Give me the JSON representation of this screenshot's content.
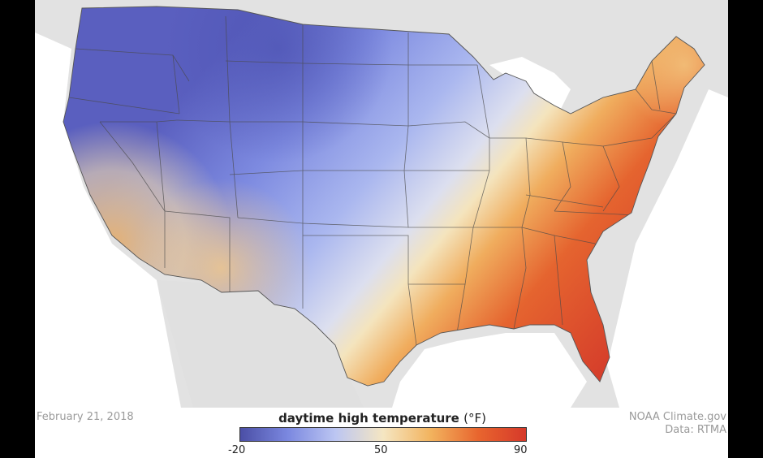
{
  "legend": {
    "title": "daytime high temperature",
    "unit": "(°F)",
    "min": -20,
    "mid": 50,
    "max": 90,
    "colors": [
      "#4b4fa6",
      "#7b88e0",
      "#bcc6f2",
      "#f5e6c2",
      "#f2b35e",
      "#e8652e",
      "#d6392a"
    ]
  },
  "date_label": "February 21, 2018",
  "credit": {
    "line1": "NOAA Climate.gov",
    "line2": "Data: RTMA"
  },
  "colors": {
    "background_land": "#e2e2e2",
    "water": "#ffffff",
    "state_border": "#4a4a4a"
  }
}
